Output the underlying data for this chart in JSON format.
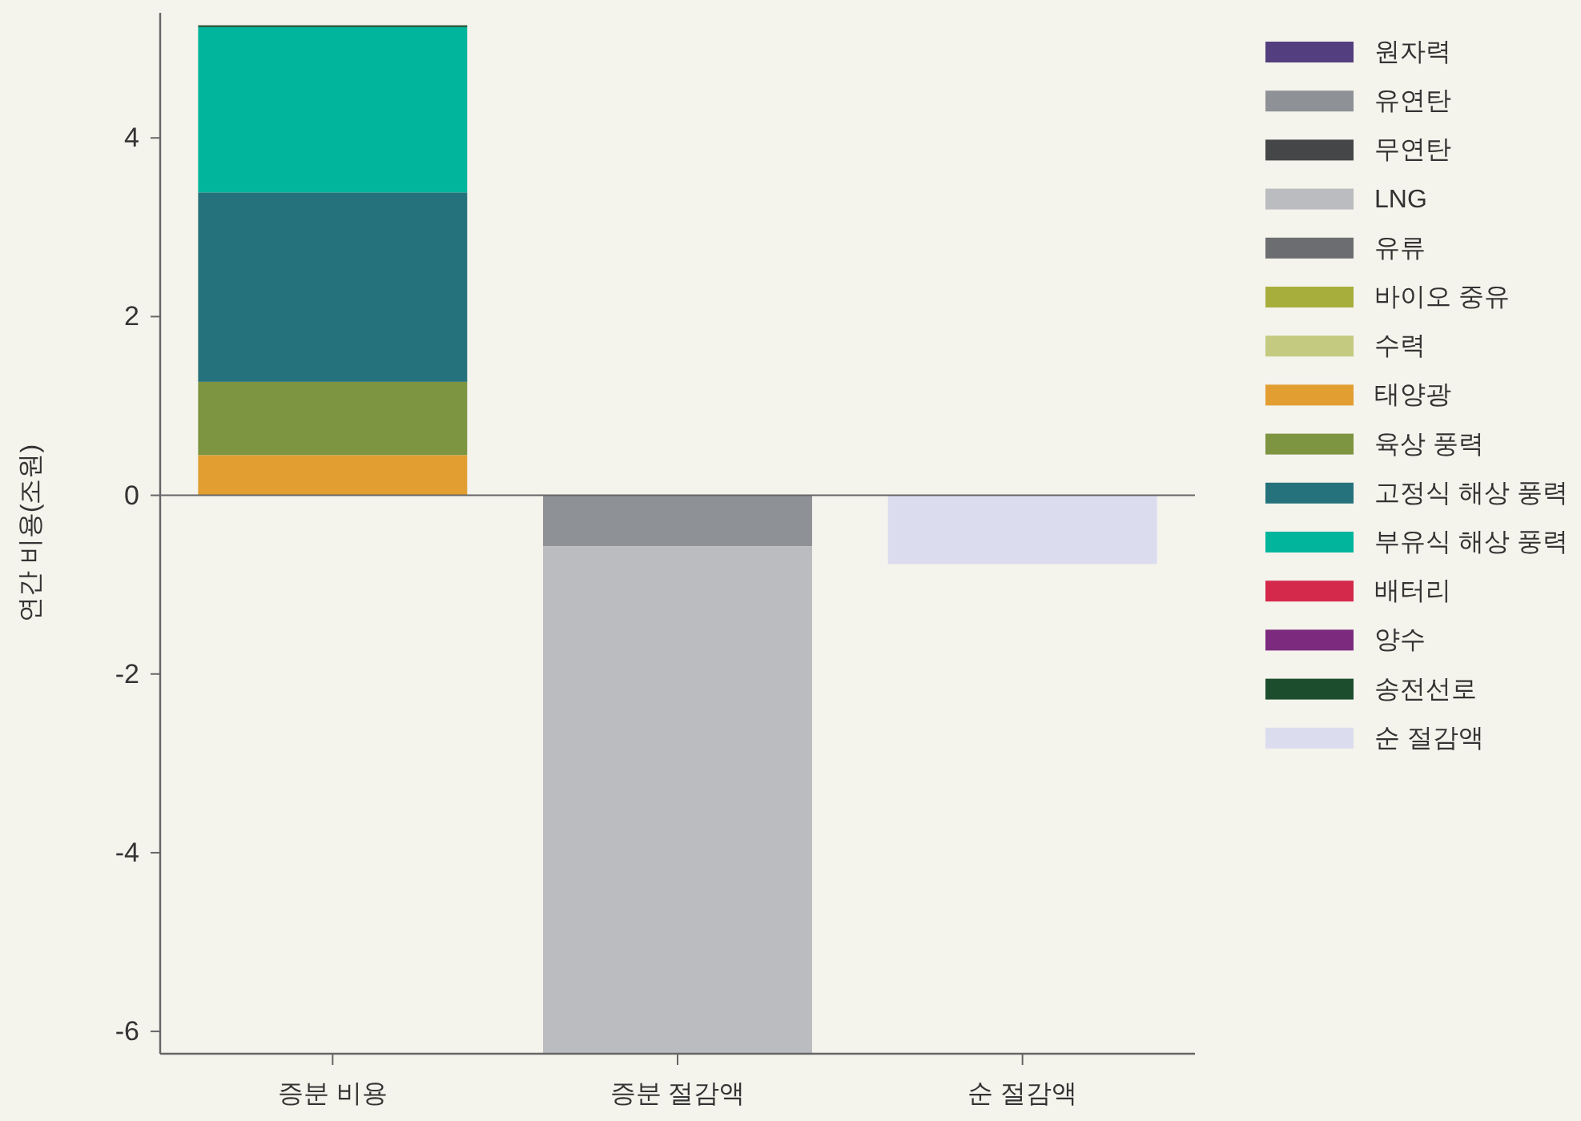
{
  "chart_data": {
    "type": "bar",
    "stacked": true,
    "ylabel": "연간 비용(조원)",
    "categories": [
      "증분 비용",
      "증분 절감액",
      "순 절감액"
    ],
    "series": [
      {
        "name": "원자력",
        "color": "#533f7f",
        "values": [
          null,
          null,
          null
        ]
      },
      {
        "name": "유연탄",
        "color": "#8e9195",
        "values": [
          null,
          -0.57,
          null
        ]
      },
      {
        "name": "무연탄",
        "color": "#454648",
        "values": [
          null,
          null,
          null
        ]
      },
      {
        "name": "LNG",
        "color": "#bbbcc0",
        "values": [
          null,
          -5.68,
          null
        ]
      },
      {
        "name": "유류",
        "color": "#6c6d70",
        "values": [
          null,
          null,
          null
        ]
      },
      {
        "name": "바이오 중유",
        "color": "#a8ae3c",
        "values": [
          null,
          null,
          null
        ]
      },
      {
        "name": "수력",
        "color": "#c4cb80",
        "values": [
          null,
          null,
          null
        ]
      },
      {
        "name": "태양광",
        "color": "#e29e31",
        "values": [
          0.45,
          null,
          null
        ]
      },
      {
        "name": "육상 풍력",
        "color": "#7d9440",
        "values": [
          0.82,
          null,
          null
        ]
      },
      {
        "name": "고정식 해상 풍력",
        "color": "#25727c",
        "values": [
          2.12,
          null,
          null
        ]
      },
      {
        "name": "부유식 해상 풍력",
        "color": "#00b59c",
        "values": [
          1.85,
          null,
          null
        ]
      },
      {
        "name": "배터리",
        "color": "#d4294a",
        "values": [
          null,
          null,
          null
        ]
      },
      {
        "name": "양수",
        "color": "#7c2a7e",
        "values": [
          null,
          null,
          null
        ]
      },
      {
        "name": "송전선로",
        "color": "#1c4e2d",
        "values": [
          0.02,
          null,
          null
        ]
      },
      {
        "name": "순 절감액",
        "color": "#dcdcef",
        "values": [
          null,
          null,
          -0.77
        ]
      }
    ],
    "ylim": [
      -6.25,
      5.4
    ],
    "yticks": [
      -6,
      -4,
      -2,
      0,
      2,
      4
    ],
    "legend": "right"
  }
}
